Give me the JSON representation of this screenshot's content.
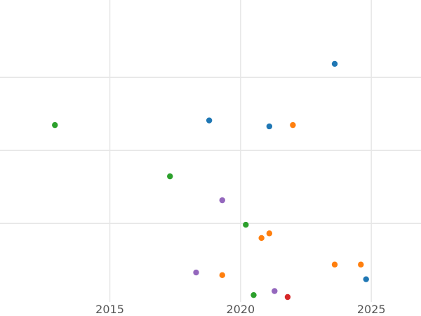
{
  "chart_data": {
    "type": "scatter",
    "title": "",
    "xlabel": "",
    "ylabel": "",
    "xlim": [
      2010.8,
      2026.9
    ],
    "ylim": [
      0,
      1
    ],
    "x_ticks": [
      2015,
      2020,
      2025
    ],
    "x_tick_labels": [
      "2015",
      "2020",
      "2025"
    ],
    "y_grid_values": [
      0.2477,
      0.4935,
      0.7393
    ],
    "grid": true,
    "legend": "none",
    "series": [
      {
        "color": "#1f77b4",
        "points": [
          {
            "x": 2023.6,
            "y": 0.785
          },
          {
            "x": 2018.8,
            "y": 0.5945
          },
          {
            "x": 2021.1,
            "y": 0.5745
          },
          {
            "x": 2024.8,
            "y": 0.0599
          }
        ]
      },
      {
        "color": "#ff7f0e",
        "points": [
          {
            "x": 2022.0,
            "y": 0.5789
          },
          {
            "x": 2021.1,
            "y": 0.2143
          },
          {
            "x": 2020.8,
            "y": 0.1987
          },
          {
            "x": 2023.6,
            "y": 0.1094
          },
          {
            "x": 2024.6,
            "y": 0.1094
          },
          {
            "x": 2019.3,
            "y": 0.0737
          }
        ]
      },
      {
        "color": "#2ca02c",
        "points": [
          {
            "x": 2012.9,
            "y": 0.5789
          },
          {
            "x": 2017.3,
            "y": 0.4063
          },
          {
            "x": 2020.2,
            "y": 0.2433
          },
          {
            "x": 2020.5,
            "y": 0.0067
          }
        ]
      },
      {
        "color": "#9467bd",
        "points": [
          {
            "x": 2019.3,
            "y": 0.3259
          },
          {
            "x": 2018.3,
            "y": 0.0826
          },
          {
            "x": 2021.3,
            "y": 0.0201
          }
        ]
      },
      {
        "color": "#d62728",
        "points": [
          {
            "x": 2021.8,
            "y": 0.0
          }
        ]
      }
    ]
  }
}
